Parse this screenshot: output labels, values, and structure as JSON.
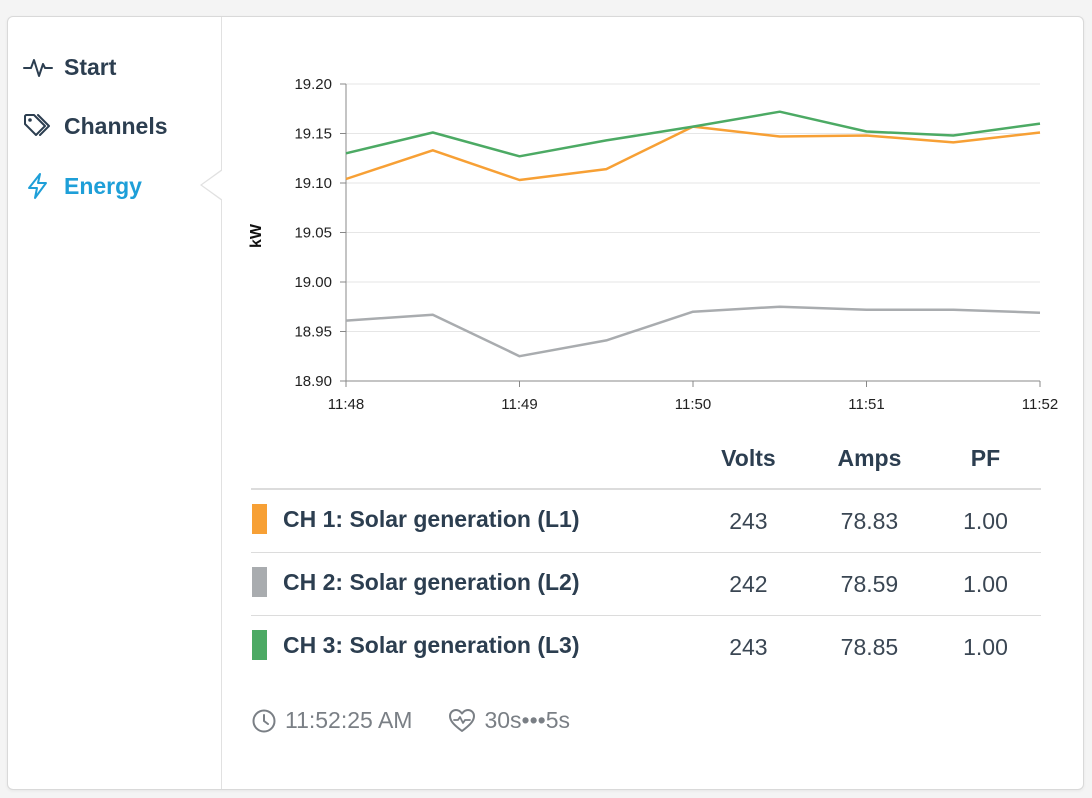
{
  "sidebar": {
    "items": [
      {
        "label": "Start",
        "icon": "pulse-icon",
        "active": false
      },
      {
        "label": "Channels",
        "icon": "tags-icon",
        "active": false
      },
      {
        "label": "Energy",
        "icon": "lightning-icon",
        "active": true
      }
    ]
  },
  "colors": {
    "ch1": "#f7a035",
    "ch2": "#a9acaf",
    "ch3": "#4caa64",
    "accent": "#1e9fd8"
  },
  "chart_data": {
    "type": "line",
    "ylabel": "kW",
    "ylim": [
      18.9,
      19.2
    ],
    "yticks": [
      "19.20",
      "19.15",
      "19.10",
      "19.05",
      "19.00",
      "18.95",
      "18.90"
    ],
    "xtick_labels": [
      "11:48",
      "11:49",
      "11:50",
      "11:51",
      "11:52"
    ],
    "xlim_minutes": [
      0,
      4
    ],
    "x": [
      0,
      0.5,
      1,
      1.5,
      2,
      2.5,
      3,
      3.5,
      4
    ],
    "series": [
      {
        "key": "ch1",
        "values": [
          19.104,
          19.133,
          19.103,
          19.114,
          19.157,
          19.147,
          19.148,
          19.141,
          19.151
        ]
      },
      {
        "key": "ch2",
        "values": [
          18.961,
          18.967,
          18.925,
          18.941,
          18.97,
          18.975,
          18.972,
          18.972,
          18.969
        ]
      },
      {
        "key": "ch3",
        "values": [
          19.13,
          19.151,
          19.127,
          19.143,
          19.157,
          19.172,
          19.152,
          19.148,
          19.16
        ]
      }
    ]
  },
  "table": {
    "headers": {
      "volts": "Volts",
      "amps": "Amps",
      "pf": "PF"
    },
    "rows": [
      {
        "name": "CH 1: Solar generation (L1)",
        "volts": "243",
        "amps": "78.83",
        "pf": "1.00"
      },
      {
        "name": "CH 2: Solar generation (L2)",
        "volts": "242",
        "amps": "78.59",
        "pf": "1.00"
      },
      {
        "name": "CH 3: Solar generation (L3)",
        "volts": "243",
        "amps": "78.85",
        "pf": "1.00"
      }
    ]
  },
  "footer": {
    "time": "11:52:25 AM",
    "interval": "30s•••5s"
  }
}
